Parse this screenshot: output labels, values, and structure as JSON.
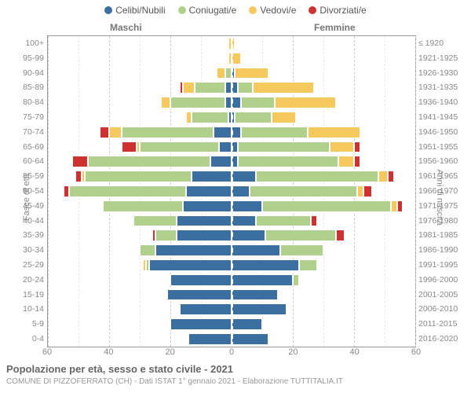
{
  "meta": {
    "title": "Popolazione per età, sesso e stato civile - 2021",
    "subtitle": "COMUNE DI PIZZOFERRATO (CH) - Dati ISTAT 1° gennaio 2021 - Elaborazione TUTTITALIA.IT",
    "gender_left": "Maschi",
    "gender_right": "Femmine",
    "y_left_title": "Fasce di età",
    "y_right_title": "Anni di nascita"
  },
  "colors": {
    "celibi": "#3b6fa0",
    "coniugati": "#b0d08c",
    "vedovi": "#f6c95e",
    "divorziati": "#cf3030",
    "bg": "#ffffff",
    "grid": "#e0e0e0",
    "text": "#888888"
  },
  "legend": [
    {
      "label": "Celibi/Nubili",
      "key": "celibi"
    },
    {
      "label": "Coniugati/e",
      "key": "coniugati"
    },
    {
      "label": "Vedovi/e",
      "key": "vedovi"
    },
    {
      "label": "Divorziati/e",
      "key": "divorziati"
    }
  ],
  "x": {
    "max": 60,
    "ticks_major": [
      0,
      20,
      40,
      60
    ],
    "ticks_minor": [
      10,
      30,
      50
    ]
  },
  "rows": [
    {
      "age": "100+",
      "birth": "≤ 1920",
      "m": {
        "celibi": 0,
        "coniugati": 0,
        "vedovi": 1,
        "divorziati": 0
      },
      "f": {
        "celibi": 0,
        "coniugati": 0,
        "vedovi": 1,
        "divorziati": 0
      }
    },
    {
      "age": "95-99",
      "birth": "1921-1925",
      "m": {
        "celibi": 0,
        "coniugati": 0,
        "vedovi": 1,
        "divorziati": 0
      },
      "f": {
        "celibi": 0,
        "coniugati": 0,
        "vedovi": 3,
        "divorziati": 0
      }
    },
    {
      "age": "90-94",
      "birth": "1926-1930",
      "m": {
        "celibi": 0,
        "coniugati": 2,
        "vedovi": 3,
        "divorziati": 0
      },
      "f": {
        "celibi": 1,
        "coniugati": 0,
        "vedovi": 11,
        "divorziati": 0
      }
    },
    {
      "age": "85-89",
      "birth": "1931-1935",
      "m": {
        "celibi": 2,
        "coniugati": 10,
        "vedovi": 4,
        "divorziati": 1
      },
      "f": {
        "celibi": 2,
        "coniugati": 5,
        "vedovi": 20,
        "divorziati": 0
      }
    },
    {
      "age": "80-84",
      "birth": "1936-1940",
      "m": {
        "celibi": 2,
        "coniugati": 18,
        "vedovi": 3,
        "divorziati": 0
      },
      "f": {
        "celibi": 3,
        "coniugati": 11,
        "vedovi": 20,
        "divorziati": 0
      }
    },
    {
      "age": "75-79",
      "birth": "1941-1945",
      "m": {
        "celibi": 1,
        "coniugati": 12,
        "vedovi": 2,
        "divorziati": 0
      },
      "f": {
        "celibi": 1,
        "coniugati": 12,
        "vedovi": 8,
        "divorziati": 0
      }
    },
    {
      "age": "70-74",
      "birth": "1946-1950",
      "m": {
        "celibi": 6,
        "coniugati": 30,
        "vedovi": 4,
        "divorziati": 3
      },
      "f": {
        "celibi": 3,
        "coniugati": 22,
        "vedovi": 17,
        "divorziati": 0
      }
    },
    {
      "age": "65-69",
      "birth": "1951-1955",
      "m": {
        "celibi": 4,
        "coniugati": 26,
        "vedovi": 1,
        "divorziati": 5
      },
      "f": {
        "celibi": 2,
        "coniugati": 30,
        "vedovi": 8,
        "divorziati": 2
      }
    },
    {
      "age": "60-64",
      "birth": "1956-1960",
      "m": {
        "celibi": 7,
        "coniugati": 40,
        "vedovi": 0,
        "divorziati": 5
      },
      "f": {
        "celibi": 2,
        "coniugati": 33,
        "vedovi": 5,
        "divorziati": 2
      }
    },
    {
      "age": "55-59",
      "birth": "1961-1965",
      "m": {
        "celibi": 13,
        "coniugati": 35,
        "vedovi": 1,
        "divorziati": 2
      },
      "f": {
        "celibi": 8,
        "coniugati": 40,
        "vedovi": 3,
        "divorziati": 2
      }
    },
    {
      "age": "50-54",
      "birth": "1966-1970",
      "m": {
        "celibi": 15,
        "coniugati": 38,
        "vedovi": 0,
        "divorziati": 2
      },
      "f": {
        "celibi": 6,
        "coniugati": 35,
        "vedovi": 2,
        "divorziati": 3
      }
    },
    {
      "age": "45-49",
      "birth": "1971-1975",
      "m": {
        "celibi": 16,
        "coniugati": 26,
        "vedovi": 0,
        "divorziati": 0
      },
      "f": {
        "celibi": 10,
        "coniugati": 42,
        "vedovi": 2,
        "divorziati": 2
      }
    },
    {
      "age": "40-44",
      "birth": "1976-1980",
      "m": {
        "celibi": 18,
        "coniugati": 14,
        "vedovi": 0,
        "divorziati": 0
      },
      "f": {
        "celibi": 8,
        "coniugati": 18,
        "vedovi": 0,
        "divorziati": 2
      }
    },
    {
      "age": "35-39",
      "birth": "1981-1985",
      "m": {
        "celibi": 18,
        "coniugati": 7,
        "vedovi": 0,
        "divorziati": 1
      },
      "f": {
        "celibi": 11,
        "coniugati": 23,
        "vedovi": 0,
        "divorziati": 3
      }
    },
    {
      "age": "30-34",
      "birth": "1986-1990",
      "m": {
        "celibi": 25,
        "coniugati": 5,
        "vedovi": 0,
        "divorziati": 0
      },
      "f": {
        "celibi": 16,
        "coniugati": 14,
        "vedovi": 0,
        "divorziati": 0
      }
    },
    {
      "age": "25-29",
      "birth": "1991-1995",
      "m": {
        "celibi": 27,
        "coniugati": 1,
        "vedovi": 1,
        "divorziati": 0
      },
      "f": {
        "celibi": 22,
        "coniugati": 6,
        "vedovi": 0,
        "divorziati": 0
      }
    },
    {
      "age": "20-24",
      "birth": "1996-2000",
      "m": {
        "celibi": 20,
        "coniugati": 0,
        "vedovi": 0,
        "divorziati": 0
      },
      "f": {
        "celibi": 20,
        "coniugati": 2,
        "vedovi": 0,
        "divorziati": 0
      }
    },
    {
      "age": "15-19",
      "birth": "2001-2005",
      "m": {
        "celibi": 21,
        "coniugati": 0,
        "vedovi": 0,
        "divorziati": 0
      },
      "f": {
        "celibi": 15,
        "coniugati": 0,
        "vedovi": 0,
        "divorziati": 0
      }
    },
    {
      "age": "10-14",
      "birth": "2006-2010",
      "m": {
        "celibi": 17,
        "coniugati": 0,
        "vedovi": 0,
        "divorziati": 0
      },
      "f": {
        "celibi": 18,
        "coniugati": 0,
        "vedovi": 0,
        "divorziati": 0
      }
    },
    {
      "age": "5-9",
      "birth": "2011-2015",
      "m": {
        "celibi": 20,
        "coniugati": 0,
        "vedovi": 0,
        "divorziati": 0
      },
      "f": {
        "celibi": 10,
        "coniugati": 0,
        "vedovi": 0,
        "divorziati": 0
      }
    },
    {
      "age": "0-4",
      "birth": "2016-2020",
      "m": {
        "celibi": 14,
        "coniugati": 0,
        "vedovi": 0,
        "divorziati": 0
      },
      "f": {
        "celibi": 12,
        "coniugati": 0,
        "vedovi": 0,
        "divorziati": 0
      }
    }
  ]
}
